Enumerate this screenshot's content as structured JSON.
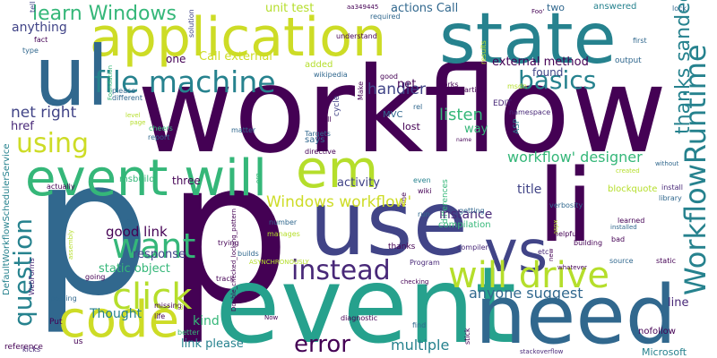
{
  "palette": {
    "dark_purple": "#440154",
    "indigo": "#414487",
    "blue": "#31688e",
    "teal": "#26828e",
    "green": "#35b779",
    "lime": "#6ece58",
    "yellow_green": "#b5de2b",
    "yellow": "#fde725",
    "mid_purple": "#482878"
  },
  "words": [
    {
      "text": "workflow"
    },
    {
      "text": "p"
    },
    {
      "text": "p"
    },
    {
      "text": "event"
    },
    {
      "text": "use"
    },
    {
      "text": "li"
    },
    {
      "text": "application"
    },
    {
      "text": "state"
    },
    {
      "text": "ul"
    },
    {
      "text": "need"
    },
    {
      "text": "code"
    },
    {
      "text": "event will"
    },
    {
      "text": "em"
    },
    {
      "text": "vs"
    },
    {
      "text": "will drive"
    },
    {
      "text": "file machine"
    },
    {
      "text": "WorkflowRuntime"
    },
    {
      "text": "want"
    },
    {
      "text": "click"
    },
    {
      "text": "instead"
    },
    {
      "text": "basics"
    },
    {
      "text": "using"
    },
    {
      "text": "question"
    },
    {
      "text": "error"
    },
    {
      "text": "learn Windows"
    },
    {
      "text": "thanks sandeep"
    },
    {
      "text": "Windows workflow'"
    },
    {
      "text": "workflow' designer"
    },
    {
      "text": "listen"
    },
    {
      "text": "handler"
    },
    {
      "text": "anyone suggest"
    },
    {
      "text": "multiple"
    },
    {
      "text": "good link"
    },
    {
      "text": "net right"
    },
    {
      "text": "anything"
    },
    {
      "text": "unit test"
    },
    {
      "text": "actions Call"
    },
    {
      "text": "Call external"
    },
    {
      "text": "external method"
    },
    {
      "text": "instance"
    },
    {
      "text": "title"
    },
    {
      "text": "line"
    },
    {
      "text": "link please"
    },
    {
      "text": "Thought"
    },
    {
      "text": "kind"
    },
    {
      "text": "response"
    },
    {
      "text": "static object"
    },
    {
      "text": "activity"
    },
    {
      "text": "href"
    },
    {
      "text": "ASP"
    },
    {
      "text": "msbuild"
    },
    {
      "text": "three"
    },
    {
      "text": "one"
    },
    {
      "text": "net"
    },
    {
      "text": "way"
    },
    {
      "text": "found"
    },
    {
      "text": "blockquote"
    },
    {
      "text": "compilation"
    },
    {
      "text": "nofollow"
    },
    {
      "text": "Microsoft"
    },
    {
      "text": "Foo'"
    },
    {
      "text": "two"
    },
    {
      "text": "answered"
    },
    {
      "text": "lock"
    },
    {
      "text": "ManualWorkflowSchedulerService"
    },
    {
      "text": "DefaultWorkflowSchedulerService"
    },
    {
      "text": "Double_checked_locking_pattern"
    },
    {
      "text": "stackoverflow"
    },
    {
      "text": "tell"
    },
    {
      "text": "installed"
    },
    {
      "text": "fact"
    },
    {
      "text": "type"
    },
    {
      "text": "solution"
    },
    {
      "text": "understand"
    },
    {
      "text": "aa349445"
    },
    {
      "text": "required"
    },
    {
      "text": "first"
    },
    {
      "text": "output"
    },
    {
      "text": "added"
    },
    {
      "text": "wikipedia"
    },
    {
      "text": "Make"
    },
    {
      "text": "good"
    },
    {
      "text": "works"
    },
    {
      "text": "article"
    },
    {
      "text": "results"
    },
    {
      "text": "msdn"
    },
    {
      "text": "rel"
    },
    {
      "text": "MVC"
    },
    {
      "text": "lost"
    },
    {
      "text": "EDIT"
    },
    {
      "text": "namespace"
    },
    {
      "text": "name"
    },
    {
      "text": "cycle"
    },
    {
      "text": "null"
    },
    {
      "text": "Targets"
    },
    {
      "text": "says"
    },
    {
      "text": "directive"
    },
    {
      "text": "matter"
    },
    {
      "text": "cheers"
    },
    {
      "text": "report"
    },
    {
      "text": "page"
    },
    {
      "text": "level"
    },
    {
      "text": "Foundation"
    },
    {
      "text": "different"
    },
    {
      "text": "please"
    },
    {
      "text": "actually"
    },
    {
      "text": "org"
    },
    {
      "text": "differences"
    },
    {
      "text": "fine"
    },
    {
      "text": "run"
    },
    {
      "text": "even"
    },
    {
      "text": "wiki"
    },
    {
      "text": "verbosity"
    },
    {
      "text": "getting"
    },
    {
      "text": "created"
    },
    {
      "text": "aspx"
    },
    {
      "text": "install"
    },
    {
      "text": "library"
    },
    {
      "text": "without"
    },
    {
      "text": "learned"
    },
    {
      "text": "new"
    },
    {
      "text": "bad"
    },
    {
      "text": "helpful"
    },
    {
      "text": "building"
    },
    {
      "text": "compiler"
    },
    {
      "text": "etc"
    },
    {
      "text": "source"
    },
    {
      "text": "static"
    },
    {
      "text": "assembly"
    },
    {
      "text": "whatever"
    },
    {
      "text": "thanks"
    },
    {
      "text": "checking"
    },
    {
      "text": "Program"
    },
    {
      "text": "WebForms"
    },
    {
      "text": "manages"
    },
    {
      "text": "number"
    },
    {
      "text": "ASYNCHRONOUSLY"
    },
    {
      "text": "trying"
    },
    {
      "text": "builds"
    },
    {
      "text": "track"
    },
    {
      "text": "en"
    },
    {
      "text": "going"
    },
    {
      "text": "posting"
    },
    {
      "text": "missing"
    },
    {
      "text": "Put"
    },
    {
      "text": "life"
    },
    {
      "text": "stick"
    },
    {
      "text": "v3"
    },
    {
      "text": "better"
    },
    {
      "text": "us"
    },
    {
      "text": "reference"
    },
    {
      "text": "kicks"
    },
    {
      "text": "Now"
    },
    {
      "text": "diagnostic"
    },
    {
      "text": "find"
    },
    {
      "text": "Second"
    }
  ]
}
